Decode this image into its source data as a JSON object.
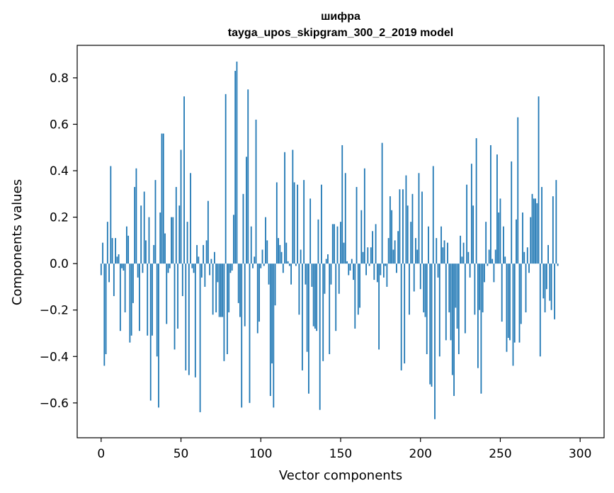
{
  "chart_data": {
    "type": "bar",
    "title_line1": "шифра",
    "title_line2": "tayga_upos_skipgram_300_2_2019 model",
    "xlabel": "Vector components",
    "ylabel": "Components values",
    "xlim": [
      -15,
      315
    ],
    "ylim": [
      -0.75,
      0.94
    ],
    "xticks": [
      0,
      50,
      100,
      150,
      200,
      250,
      300
    ],
    "xtick_labels": [
      "0",
      "50",
      "100",
      "150",
      "200",
      "250",
      "300"
    ],
    "yticks": [
      -0.6,
      -0.4,
      -0.2,
      0.0,
      0.2,
      0.4,
      0.6,
      0.8
    ],
    "ytick_labels": [
      "−0.6",
      "−0.4",
      "−0.2",
      "0.0",
      "0.2",
      "0.4",
      "0.6",
      "0.8"
    ],
    "bar_color": "#1f77b4",
    "values": [
      -0.05,
      0.09,
      -0.44,
      -0.39,
      0.18,
      -0.08,
      0.42,
      0.11,
      -0.14,
      0.11,
      0.03,
      0.04,
      -0.29,
      -0.02,
      -0.03,
      -0.21,
      0.16,
      0.12,
      -0.34,
      -0.31,
      -0.17,
      0.33,
      0.41,
      -0.06,
      -0.29,
      0.25,
      -0.04,
      0.31,
      0.1,
      -0.31,
      0.2,
      -0.59,
      -0.31,
      0.08,
      0.36,
      -0.4,
      -0.62,
      0.22,
      0.56,
      0.56,
      0.13,
      -0.26,
      -0.04,
      -0.02,
      0.2,
      0.2,
      -0.37,
      0.33,
      -0.28,
      0.25,
      0.49,
      -0.14,
      0.72,
      -0.46,
      0.18,
      -0.48,
      0.39,
      -0.02,
      -0.04,
      -0.49,
      0.08,
      0.03,
      -0.64,
      -0.06,
      0.08,
      -0.1,
      0.1,
      0.27,
      -0.05,
      0.02,
      -0.22,
      0.05,
      -0.21,
      -0.08,
      -0.23,
      -0.23,
      -0.23,
      -0.42,
      0.73,
      -0.39,
      -0.21,
      -0.04,
      -0.03,
      0.21,
      0.83,
      0.87,
      -0.17,
      -0.23,
      -0.62,
      0.3,
      -0.27,
      0.46,
      0.75,
      -0.6,
      0.16,
      -0.02,
      0.03,
      0.62,
      -0.3,
      -0.25,
      -0.02,
      0.06,
      -0.01,
      0.2,
      0.1,
      -0.09,
      -0.57,
      -0.43,
      -0.62,
      -0.18,
      0.35,
      0.11,
      0.08,
      0.05,
      -0.04,
      0.48,
      0.09,
      0.01,
      -0.01,
      -0.09,
      0.49,
      0.35,
      -0.01,
      0.34,
      -0.22,
      0.06,
      -0.46,
      0.36,
      -0.09,
      -0.38,
      -0.56,
      0.28,
      -0.1,
      -0.27,
      -0.28,
      -0.29,
      0.19,
      -0.63,
      0.34,
      -0.42,
      -0.13,
      0.02,
      0.04,
      -0.39,
      -0.09,
      0.17,
      0.17,
      -0.29,
      0.16,
      -0.13,
      0.18,
      0.51,
      0.09,
      0.39,
      0.01,
      -0.05,
      -0.03,
      0.02,
      -0.07,
      -0.28,
      0.33,
      -0.22,
      -0.19,
      0.23,
      0.05,
      0.41,
      -0.05,
      0.07,
      -0.01,
      0.07,
      0.14,
      -0.07,
      0.17,
      -0.08,
      -0.37,
      -0.05,
      0.52,
      -0.06,
      -0.01,
      -0.1,
      0.11,
      0.29,
      0.23,
      0.06,
      0.1,
      -0.04,
      0.14,
      0.32,
      -0.46,
      0.32,
      -0.43,
      0.38,
      0.25,
      -0.22,
      0.18,
      0.3,
      -0.12,
      0.11,
      0.06,
      0.39,
      -0.11,
      0.31,
      -0.21,
      -0.23,
      -0.39,
      0.16,
      -0.52,
      -0.53,
      0.42,
      -0.67,
      0.11,
      -0.06,
      -0.4,
      0.16,
      0.07,
      0.1,
      -0.33,
      0.09,
      -0.21,
      -0.33,
      -0.48,
      -0.57,
      -0.19,
      -0.28,
      -0.39,
      0.12,
      0.03,
      0.09,
      -0.3,
      0.34,
      0.05,
      -0.06,
      0.43,
      0.25,
      -0.22,
      0.54,
      -0.45,
      -0.2,
      -0.56,
      -0.21,
      -0.08,
      0.18,
      -0.01,
      0.06,
      0.51,
      0.02,
      -0.08,
      0.06,
      0.47,
      0.22,
      0.28,
      -0.25,
      0.16,
      0.03,
      -0.38,
      -0.32,
      -0.33,
      0.44,
      -0.44,
      -0.34,
      0.19,
      0.63,
      -0.34,
      -0.26,
      0.22,
      0.05,
      -0.21,
      0.07,
      -0.04,
      0.2,
      0.3,
      0.28,
      0.28,
      0.26,
      0.72,
      -0.4,
      0.33,
      -0.15,
      -0.21,
      -0.11,
      0.08,
      -0.16,
      -0.2,
      0.29,
      -0.24,
      0.36,
      -0.01
    ]
  }
}
